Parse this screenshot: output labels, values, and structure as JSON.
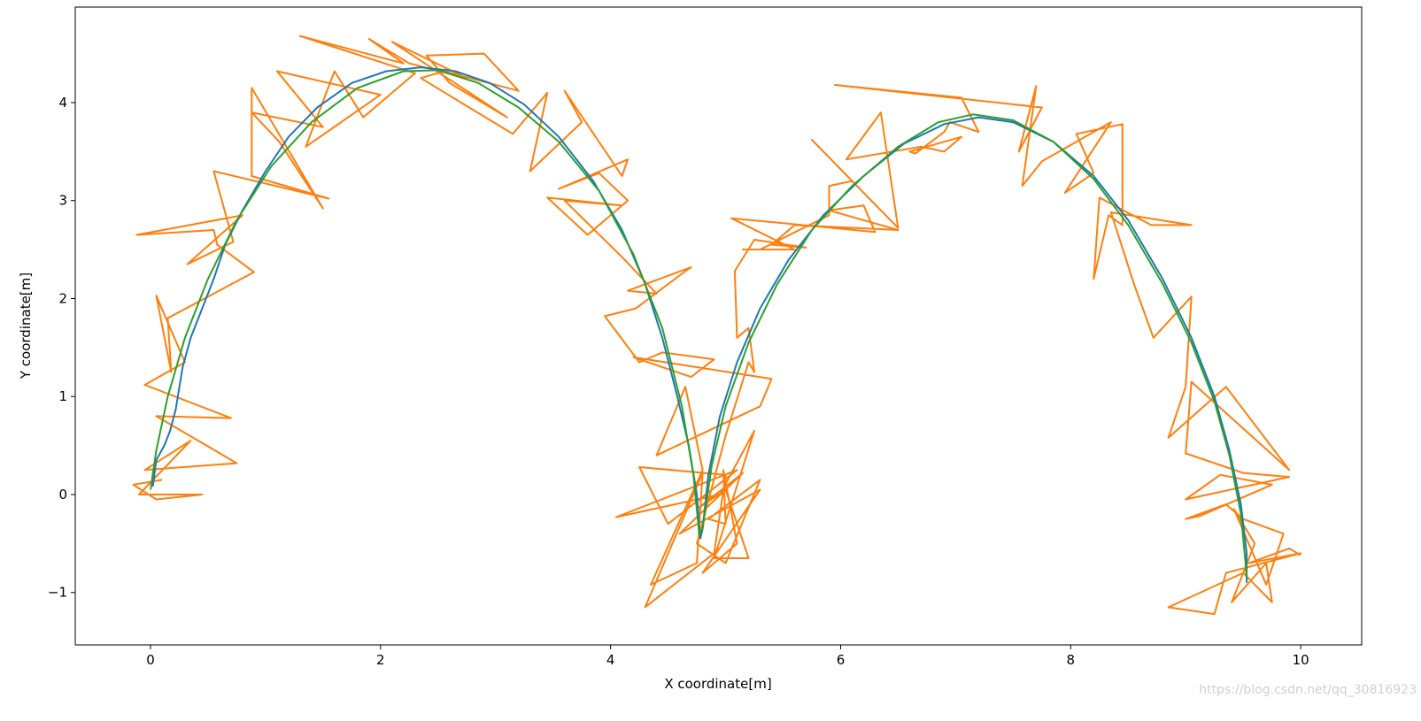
{
  "chart_data": {
    "type": "line",
    "xlabel": "X coordinate[m]",
    "ylabel": "Y coordinate[m]",
    "watermark": "https://blog.csdn.net/qq_30816923",
    "xlim": [
      -0.654,
      10.53
    ],
    "ylim": [
      -1.535,
      4.975
    ],
    "xticks": [
      0,
      2,
      4,
      6,
      8,
      10
    ],
    "yticks": [
      {
        "value": -1,
        "label": "−1"
      },
      0,
      1,
      2,
      3,
      4
    ],
    "grid": false,
    "series": [
      {
        "color": "#ff7f0e",
        "x": [
          0.1,
          -0.15,
          0.05,
          0.45,
          -0.1,
          0.35,
          -0.05,
          0.75,
          0.05,
          0.7,
          -0.05,
          0.3,
          0.05,
          0.18,
          0.15,
          0.9,
          0.58,
          0.55,
          -0.12,
          0.8,
          0.32,
          0.72,
          0.55,
          1.55,
          0.88,
          0.88,
          1.5,
          1.12,
          0.88,
          1.5,
          1.1,
          2.0,
          1.35,
          1.6,
          1.85,
          2.3,
          1.3,
          2.2,
          1.9,
          2.25,
          2.75,
          2.1,
          3.1,
          2.6,
          2.4,
          2.9,
          3.2,
          2.55,
          2.35,
          3.15,
          3.45,
          3.3,
          3.75,
          3.6,
          4.1,
          4.15,
          3.55,
          3.9,
          4.15,
          3.8,
          3.45,
          4.1,
          3.6,
          4.12,
          4.4,
          4.15,
          4.7,
          4.65,
          4.22,
          3.95,
          4.25,
          4.45,
          4.9,
          4.7,
          4.2,
          5.4,
          5.3,
          4.4,
          4.65,
          4.8,
          4.35,
          4.75,
          4.8,
          4.3,
          4.9,
          5.0,
          4.25,
          4.5,
          5.1,
          4.05,
          4.95,
          5.25,
          4.9,
          5.2,
          5.0,
          4.75,
          5.15,
          4.6,
          5.3,
          4.8,
          5.1,
          4.98,
          5.0,
          4.85,
          5.3,
          5.0,
          4.75,
          5.0,
          5.2,
          5.25,
          5.2,
          5.1,
          5.08,
          5.25,
          5.7,
          5.4,
          5.6,
          6.5,
          5.9,
          6.2,
          6.3,
          5.05,
          5.6,
          5.15,
          5.3,
          5.9,
          5.9,
          6.1,
          5.75,
          6.5,
          6.35,
          6.05,
          6.7,
          6.9,
          7.05,
          6.6,
          6.65,
          6.9,
          6.95,
          7.2,
          7.05,
          5.95,
          7.75,
          7.55,
          7.7,
          7.58,
          7.75,
          8.35,
          7.95,
          8.2,
          8.05,
          8.45,
          8.45,
          8.33,
          8.2,
          8.25,
          8.7,
          9.05,
          8.35,
          8.55,
          8.72,
          9.05,
          9.0,
          8.85,
          9.35,
          9.9,
          9.05,
          9.0,
          9.5,
          9.9,
          9.0,
          9.3,
          9.75,
          9.12,
          9.0,
          9.35,
          9.5,
          9.85,
          9.7,
          9.42,
          9.6,
          9.4,
          9.7,
          9.75,
          9.5,
          8.85,
          9.25,
          9.35,
          10.0,
          9.55,
          9.9,
          10.0
        ],
        "values": [
          0.15,
          0.1,
          -0.05,
          0.0,
          0.0,
          0.55,
          0.25,
          0.32,
          0.8,
          0.78,
          1.12,
          1.35,
          2.03,
          1.25,
          1.8,
          2.27,
          2.55,
          2.7,
          2.65,
          2.85,
          2.35,
          2.58,
          3.3,
          3.02,
          3.25,
          4.15,
          2.92,
          3.6,
          3.9,
          3.75,
          4.32,
          4.08,
          3.55,
          4.32,
          3.85,
          4.3,
          4.68,
          4.4,
          4.65,
          4.4,
          4.25,
          4.62,
          3.85,
          4.2,
          4.48,
          4.5,
          4.12,
          4.32,
          4.25,
          3.68,
          4.1,
          3.3,
          3.8,
          4.12,
          3.25,
          3.42,
          3.12,
          3.28,
          3.0,
          2.65,
          3.03,
          2.95,
          3.0,
          2.4,
          2.05,
          2.08,
          2.32,
          2.28,
          1.9,
          1.82,
          1.35,
          1.45,
          1.38,
          1.2,
          1.4,
          1.18,
          0.9,
          0.4,
          1.1,
          0.25,
          -0.92,
          -0.7,
          0.22,
          -1.15,
          -0.6,
          0.2,
          0.28,
          -0.3,
          0.25,
          -0.23,
          0.0,
          0.65,
          -0.65,
          -0.65,
          0.05,
          -0.15,
          0.22,
          -0.4,
          0.05,
          -0.8,
          -0.5,
          0.25,
          -0.3,
          -0.25,
          0.15,
          -0.7,
          -0.5,
          0.6,
          1.35,
          1.25,
          1.7,
          1.6,
          2.28,
          2.6,
          2.52,
          2.55,
          2.75,
          2.7,
          2.9,
          2.95,
          2.68,
          2.82,
          2.5,
          2.5,
          2.5,
          2.85,
          3.15,
          3.2,
          3.62,
          2.72,
          3.9,
          3.42,
          3.55,
          3.5,
          3.65,
          3.5,
          3.48,
          3.7,
          3.8,
          3.7,
          4.05,
          4.18,
          3.95,
          3.5,
          4.17,
          3.15,
          3.4,
          3.8,
          3.08,
          3.28,
          3.68,
          3.78,
          2.75,
          2.85,
          2.2,
          3.03,
          2.75,
          2.75,
          2.88,
          2.15,
          1.6,
          2.02,
          1.1,
          0.58,
          1.1,
          0.25,
          1.15,
          0.42,
          0.22,
          0.18,
          -0.05,
          0.2,
          0.1,
          -0.22,
          -0.25,
          -0.1,
          -0.25,
          -0.4,
          -0.92,
          -0.15,
          -0.5,
          -1.1,
          -0.7,
          -1.1,
          -0.8,
          -1.15,
          -1.22,
          -0.8,
          -0.6,
          -0.7,
          -0.55,
          -0.62
        ]
      },
      {
        "color": "#1f77b4",
        "x": [
          0.02,
          0.05,
          0.12,
          0.17,
          0.22,
          0.28,
          0.35,
          0.45,
          0.55,
          0.65,
          0.8,
          1.0,
          1.2,
          1.45,
          1.75,
          2.05,
          2.35,
          2.65,
          2.95,
          3.25,
          3.55,
          3.85,
          4.1,
          4.3,
          4.45,
          4.58,
          4.68,
          4.75,
          4.78,
          4.8,
          4.85,
          4.95,
          5.1,
          5.3,
          5.55,
          5.85,
          6.2,
          6.55,
          6.9,
          7.2,
          7.5,
          7.85,
          8.2,
          8.5,
          8.8,
          9.05,
          9.25,
          9.38,
          9.48,
          9.53,
          9.53
        ],
        "values": [
          0.08,
          0.35,
          0.5,
          0.65,
          0.87,
          1.3,
          1.6,
          1.9,
          2.2,
          2.55,
          2.9,
          3.3,
          3.65,
          3.95,
          4.2,
          4.32,
          4.36,
          4.32,
          4.2,
          3.98,
          3.65,
          3.2,
          2.7,
          2.15,
          1.6,
          1.0,
          0.5,
          0.0,
          -0.45,
          -0.35,
          0.2,
          0.8,
          1.35,
          1.9,
          2.4,
          2.85,
          3.25,
          3.58,
          3.78,
          3.85,
          3.8,
          3.6,
          3.25,
          2.8,
          2.2,
          1.6,
          1.0,
          0.45,
          -0.1,
          -0.6,
          -0.9
        ]
      },
      {
        "color": "#2ca02c",
        "x": [
          0.0,
          0.05,
          0.15,
          0.3,
          0.5,
          0.75,
          1.05,
          1.4,
          1.8,
          2.2,
          2.5,
          2.85,
          3.2,
          3.55,
          3.9,
          4.2,
          4.45,
          4.62,
          4.72,
          4.77,
          4.8,
          4.88,
          5.0,
          5.2,
          5.45,
          5.75,
          6.1,
          6.5,
          6.85,
          7.15,
          7.5,
          7.85,
          8.2,
          8.5,
          8.8,
          9.05,
          9.25,
          9.38,
          9.48,
          9.52,
          9.53
        ],
        "values": [
          0.05,
          0.45,
          1.0,
          1.6,
          2.2,
          2.8,
          3.35,
          3.8,
          4.15,
          4.32,
          4.33,
          4.2,
          3.95,
          3.6,
          3.1,
          2.45,
          1.7,
          0.9,
          0.2,
          -0.4,
          -0.35,
          0.3,
          0.9,
          1.55,
          2.15,
          2.7,
          3.15,
          3.55,
          3.8,
          3.88,
          3.82,
          3.6,
          3.22,
          2.75,
          2.15,
          1.55,
          0.95,
          0.4,
          -0.2,
          -0.7,
          -0.85
        ]
      }
    ]
  }
}
